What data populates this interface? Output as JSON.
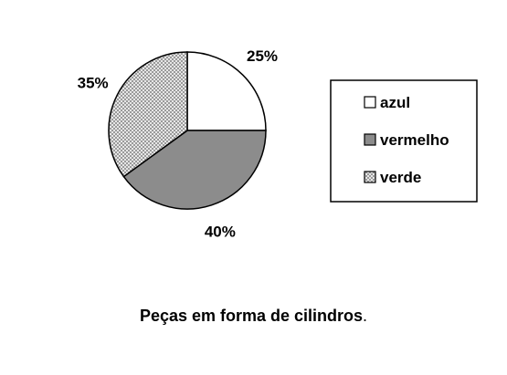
{
  "chart_data": {
    "type": "pie",
    "categories": [
      "azul",
      "vermelho",
      "verde"
    ],
    "values": [
      25,
      40,
      35
    ],
    "labels": [
      "25%",
      "40%",
      "35%"
    ],
    "colors": [
      "#ffffff",
      "#8c8c8c",
      "#c8c8c8"
    ],
    "fill_patterns": [
      "none",
      "solid",
      "checker"
    ],
    "start_direction": "top",
    "direction": "clockwise",
    "legend_position": "right"
  },
  "caption": {
    "text": "Peças em forma de cilindros",
    "suffix": "."
  }
}
